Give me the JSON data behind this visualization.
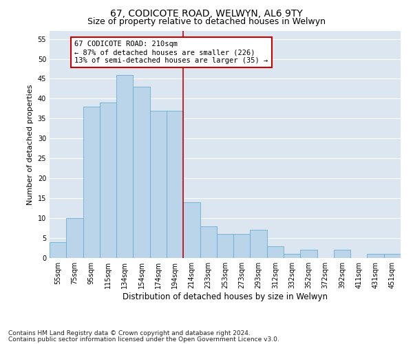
{
  "title1": "67, CODICOTE ROAD, WELWYN, AL6 9TY",
  "title2": "Size of property relative to detached houses in Welwyn",
  "xlabel": "Distribution of detached houses by size in Welwyn",
  "ylabel": "Number of detached properties",
  "categories": [
    "55sqm",
    "75sqm",
    "95sqm",
    "115sqm",
    "134sqm",
    "154sqm",
    "174sqm",
    "194sqm",
    "214sqm",
    "233sqm",
    "253sqm",
    "273sqm",
    "293sqm",
    "312sqm",
    "332sqm",
    "352sqm",
    "372sqm",
    "392sqm",
    "411sqm",
    "431sqm",
    "451sqm"
  ],
  "values": [
    4,
    10,
    38,
    39,
    46,
    43,
    37,
    37,
    14,
    8,
    6,
    6,
    7,
    3,
    1,
    2,
    0,
    2,
    0,
    1,
    1
  ],
  "bar_color": "#bad4ea",
  "bar_edge_color": "#6aaed6",
  "vline_color": "#cc0000",
  "annotation_box_text": "67 CODICOTE ROAD: 210sqm\n← 87% of detached houses are smaller (226)\n13% of semi-detached houses are larger (35) →",
  "annotation_box_color": "#cc0000",
  "annotation_box_bg": "#ffffff",
  "ylim": [
    0,
    57
  ],
  "yticks": [
    0,
    5,
    10,
    15,
    20,
    25,
    30,
    35,
    40,
    45,
    50,
    55
  ],
  "bg_color": "#dce6f1",
  "footer1": "Contains HM Land Registry data © Crown copyright and database right 2024.",
  "footer2": "Contains public sector information licensed under the Open Government Licence v3.0.",
  "title1_fontsize": 10,
  "title2_fontsize": 9,
  "xlabel_fontsize": 8.5,
  "ylabel_fontsize": 8,
  "tick_fontsize": 7,
  "annotation_fontsize": 7.5,
  "footer_fontsize": 6.5
}
